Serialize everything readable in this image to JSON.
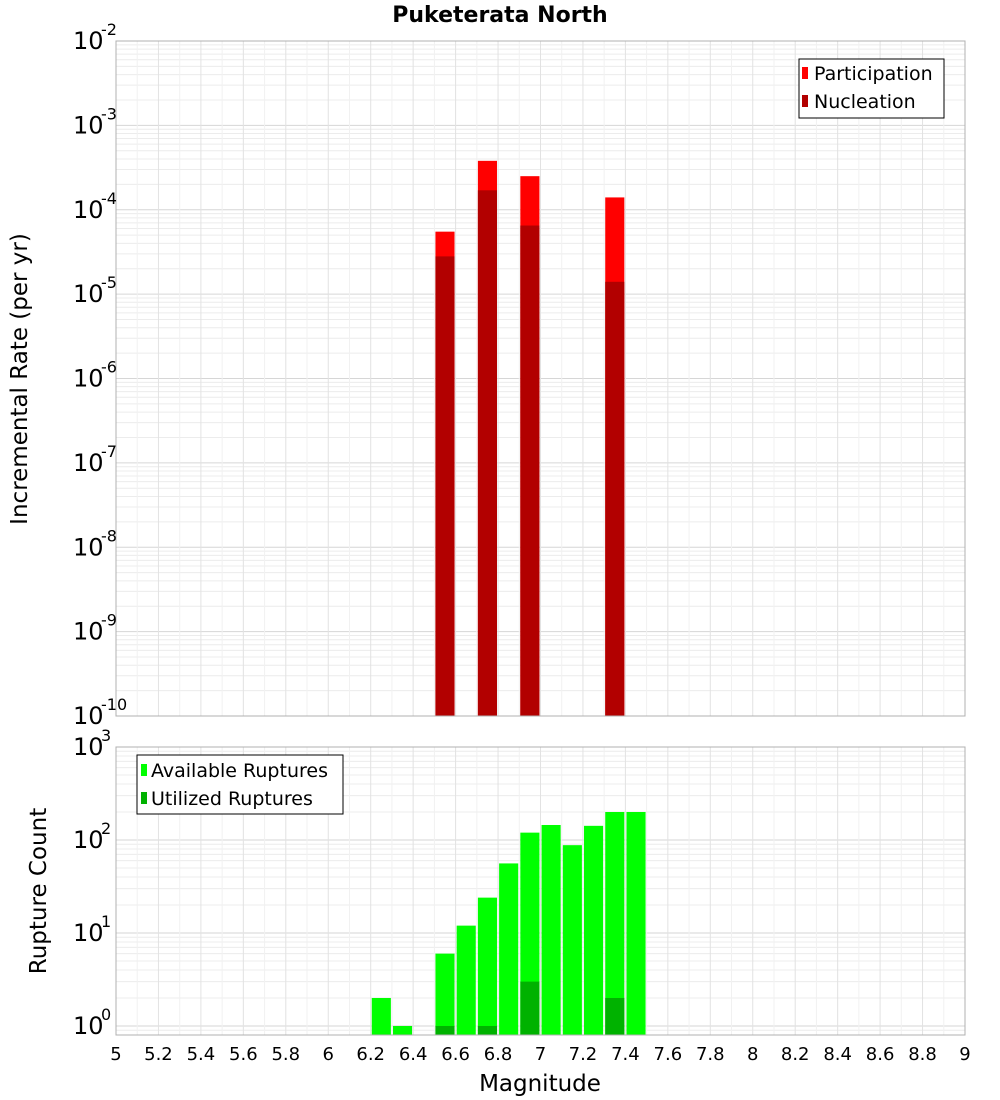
{
  "chart_data": [
    {
      "type": "bar",
      "title": "Puketerata North",
      "ylabel": "Incremental Rate (per yr)",
      "yscale": "log",
      "ylim": [
        1e-10,
        0.01
      ],
      "xlim": [
        5,
        9
      ],
      "y_tick_labels": [
        {
          "base": "10",
          "exp": "-10"
        },
        {
          "base": "10",
          "exp": "-9"
        },
        {
          "base": "10",
          "exp": "-8"
        },
        {
          "base": "10",
          "exp": "-7"
        },
        {
          "base": "10",
          "exp": "-6"
        },
        {
          "base": "10",
          "exp": "-5"
        },
        {
          "base": "10",
          "exp": "-4"
        },
        {
          "base": "10",
          "exp": "-3"
        },
        {
          "base": "10",
          "exp": "-2"
        }
      ],
      "grid": true,
      "legend_position": "top-right",
      "bar_width": 0.09,
      "series": [
        {
          "name": "Participation",
          "color": "#ff0000",
          "x": [
            6.55,
            6.75,
            6.95,
            7.35
          ],
          "values": [
            5.5e-05,
            0.00038,
            0.00025,
            0.00014
          ]
        },
        {
          "name": "Nucleation",
          "color": "#b20000",
          "x": [
            6.55,
            6.75,
            6.95,
            7.35
          ],
          "values": [
            2.8e-05,
            0.00017,
            6.5e-05,
            1.4e-05
          ]
        }
      ]
    },
    {
      "type": "bar",
      "xlabel": "Magnitude",
      "ylabel": "Rupture Count",
      "yscale": "log",
      "ylim": [
        0.8,
        1000
      ],
      "xlim": [
        5,
        9
      ],
      "x_tick_labels": [
        "5",
        "5.2",
        "5.4",
        "5.6",
        "5.8",
        "6",
        "6.2",
        "6.4",
        "6.6",
        "6.8",
        "7",
        "7.2",
        "7.4",
        "7.6",
        "7.8",
        "8",
        "8.2",
        "8.4",
        "8.6",
        "8.8",
        "9"
      ],
      "y_tick_labels": [
        {
          "base": "10",
          "exp": "0"
        },
        {
          "base": "10",
          "exp": "1"
        },
        {
          "base": "10",
          "exp": "2"
        },
        {
          "base": "10",
          "exp": "3"
        }
      ],
      "grid": true,
      "legend_position": "top-left",
      "bar_width": 0.09,
      "series": [
        {
          "name": "Available Ruptures",
          "color": "#00ff00",
          "x": [
            6.25,
            6.35,
            6.55,
            6.65,
            6.75,
            6.85,
            6.95,
            7.05,
            7.15,
            7.25,
            7.35,
            7.45
          ],
          "values": [
            2,
            1,
            6,
            12,
            24,
            56,
            120,
            145,
            88,
            142,
            200,
            200
          ]
        },
        {
          "name": "Utilized Ruptures",
          "color": "#00b200",
          "x": [
            6.55,
            6.75,
            6.95,
            7.35
          ],
          "values": [
            1,
            1,
            3,
            2
          ]
        }
      ]
    }
  ]
}
